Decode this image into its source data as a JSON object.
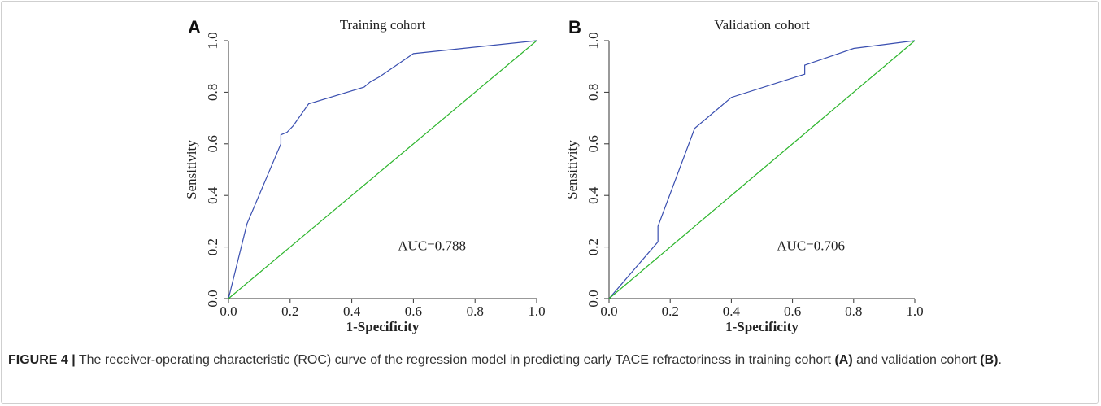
{
  "chart_data": [
    {
      "type": "line",
      "panel": "A",
      "title": "Training cohort",
      "xlabel": "1-Specificity",
      "ylabel": "Sensitivity",
      "annotation": "AUC=0.788",
      "xlim": [
        0,
        1
      ],
      "ylim": [
        0,
        1
      ],
      "xticks": [
        {
          "value": 0,
          "label": "0.0"
        },
        0.2,
        0.4,
        0.6,
        0.8,
        {
          "value": 1,
          "label": "1.0"
        }
      ],
      "yticks": [
        {
          "value": 0,
          "label": "0.0"
        },
        0.2,
        0.4,
        0.6,
        0.8,
        {
          "value": 1,
          "label": "1.0"
        }
      ],
      "series": [
        {
          "color": "#3a4fb0",
          "x": [
            0,
            0.06,
            0.17,
            0.17,
            0.19,
            0.21,
            0.26,
            0.44,
            0.46,
            0.49,
            0.6,
            1
          ],
          "values": [
            0,
            0.29,
            0.6,
            0.635,
            0.645,
            0.67,
            0.755,
            0.82,
            0.84,
            0.86,
            0.95,
            1
          ]
        },
        {
          "color": "#2db52d",
          "x": [
            0,
            1
          ],
          "values": [
            0,
            1
          ]
        }
      ]
    },
    {
      "type": "line",
      "panel": "B",
      "title": "Validation cohort",
      "xlabel": "1-Specificity",
      "ylabel": "Sensitivity",
      "annotation": "AUC=0.706",
      "xlim": [
        0,
        1
      ],
      "ylim": [
        0,
        1
      ],
      "xticks": [
        {
          "value": 0,
          "label": "0.0"
        },
        0.2,
        0.4,
        0.6,
        0.8,
        {
          "value": 1,
          "label": "1.0"
        }
      ],
      "yticks": [
        {
          "value": 0,
          "label": "0.0"
        },
        0.2,
        0.4,
        0.6,
        0.8,
        {
          "value": 1,
          "label": "1.0"
        }
      ],
      "series": [
        {
          "color": "#3a4fb0",
          "x": [
            0,
            0.16,
            0.16,
            0.28,
            0.4,
            0.64,
            0.64,
            0.8,
            1
          ],
          "values": [
            0,
            0.22,
            0.28,
            0.66,
            0.78,
            0.87,
            0.905,
            0.97,
            1
          ]
        },
        {
          "color": "#2db52d",
          "x": [
            0,
            1
          ],
          "values": [
            0,
            1
          ]
        }
      ]
    }
  ],
  "caption": [
    "FIGURE 4 |",
    "The receiver-operating characteristic (ROC) curve of the regression model in predicting early TACE refractoriness in training cohort",
    "(A)",
    "and validation cohort",
    "(B)",
    "."
  ]
}
